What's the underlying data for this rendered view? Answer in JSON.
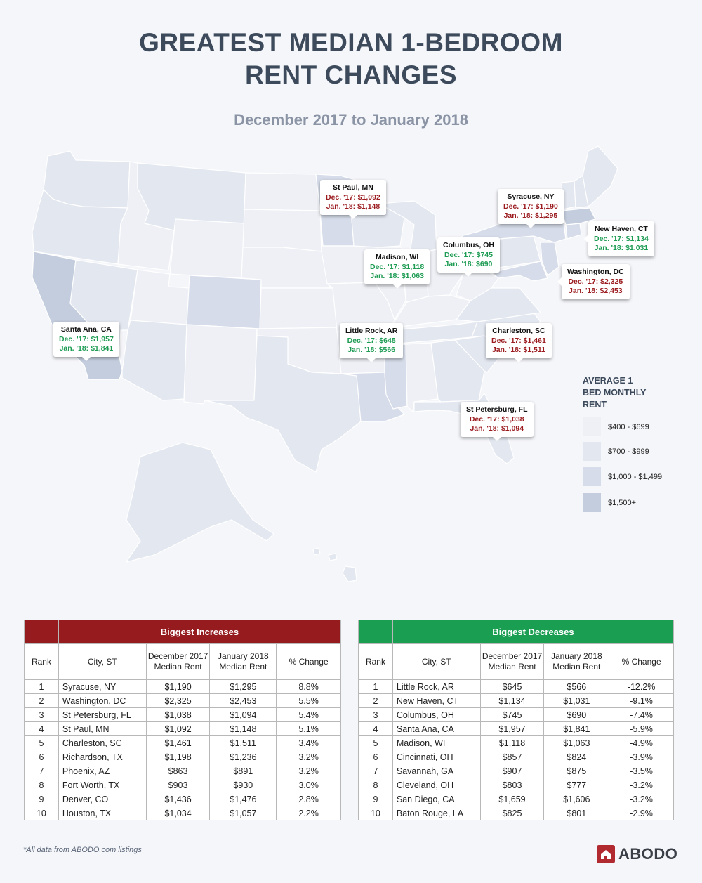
{
  "title_line1": "GREATEST MEDIAN 1-BEDROOM",
  "title_line2": "RENT CHANGES",
  "subtitle": "December 2017 to January 2018",
  "colors": {
    "tier1": "#eef0f6",
    "tier2": "#e3e7f0",
    "tier3": "#d6dce9",
    "tier4": "#c3cddd",
    "increase": "#9b1b1f",
    "decrease": "#1e9c54"
  },
  "callouts": [
    {
      "city": "St Paul, MN",
      "dec": "Dec. '17: $1,092",
      "jan": "Jan. '18: $1,148",
      "type": "inc"
    },
    {
      "city": "Syracuse, NY",
      "dec": "Dec. '17: $1,190",
      "jan": "Jan. '18: $1,295",
      "type": "inc"
    },
    {
      "city": "New Haven, CT",
      "dec": "Dec. '17: $1,134",
      "jan": "Jan. '18: $1,031",
      "type": "dec"
    },
    {
      "city": "Columbus, OH",
      "dec": "Dec. '17: $745",
      "jan": "Jan. '18: $690",
      "type": "dec"
    },
    {
      "city": "Madison, WI",
      "dec": "Dec. '17: $1,118",
      "jan": "Jan. '18: $1,063",
      "type": "dec"
    },
    {
      "city": "Washington, DC",
      "dec": "Dec. '17: $2,325",
      "jan": "Jan. '18: $2,453",
      "type": "inc"
    },
    {
      "city": "Santa Ana, CA",
      "dec": "Dec. '17: $1,957",
      "jan": "Jan. '18: $1,841",
      "type": "dec"
    },
    {
      "city": "Little Rock, AR",
      "dec": "Dec. '17: $645",
      "jan": "Jan. '18: $566",
      "type": "dec"
    },
    {
      "city": "Charleston, SC",
      "dec": "Dec. '17: $1,461",
      "jan": "Jan. '18: $1,511",
      "type": "inc"
    },
    {
      "city": "St Petersburg, FL",
      "dec": "Dec. '17: $1,038",
      "jan": "Jan. '18: $1,094",
      "type": "inc"
    }
  ],
  "legend": {
    "title_lines": [
      "AVERAGE 1",
      "BED MONTHLY",
      "RENT"
    ],
    "items": [
      {
        "label": "$400 - $699",
        "color": "#eef0f6"
      },
      {
        "label": "$700 - $999",
        "color": "#e3e7f0"
      },
      {
        "label": "$1,000 - $1,499",
        "color": "#d6dce9"
      },
      {
        "label": "$1,500+",
        "color": "#c3cddd"
      }
    ]
  },
  "tables": {
    "headers": {
      "rank": "Rank",
      "city": "City, ST",
      "dec": "December 2017 Median Rent",
      "jan": "January 2018 Median Rent",
      "pct": "% Change"
    },
    "increases": {
      "title": "Biggest Increases",
      "color": "#961b1f",
      "rows": [
        [
          "1",
          "Syracuse, NY",
          "$1,190",
          "$1,295",
          "8.8%"
        ],
        [
          "2",
          "Washington, DC",
          "$2,325",
          "$2,453",
          "5.5%"
        ],
        [
          "3",
          "St Petersburg, FL",
          "$1,038",
          "$1,094",
          "5.4%"
        ],
        [
          "4",
          "St Paul, MN",
          "$1,092",
          "$1,148",
          "5.1%"
        ],
        [
          "5",
          "Charleston, SC",
          "$1,461",
          "$1,511",
          "3.4%"
        ],
        [
          "6",
          "Richardson, TX",
          "$1,198",
          "$1,236",
          "3.2%"
        ],
        [
          "7",
          "Phoenix, AZ",
          "$863",
          "$891",
          "3.2%"
        ],
        [
          "8",
          "Fort Worth, TX",
          "$903",
          "$930",
          "3.0%"
        ],
        [
          "9",
          "Denver, CO",
          "$1,436",
          "$1,476",
          "2.8%"
        ],
        [
          "10",
          "Houston, TX",
          "$1,034",
          "$1,057",
          "2.2%"
        ]
      ]
    },
    "decreases": {
      "title": "Biggest Decreases",
      "color": "#1a9e52",
      "rows": [
        [
          "1",
          "Little Rock, AR",
          "$645",
          "$566",
          "-12.2%"
        ],
        [
          "2",
          "New Haven, CT",
          "$1,134",
          "$1,031",
          "-9.1%"
        ],
        [
          "3",
          "Columbus, OH",
          "$745",
          "$690",
          "-7.4%"
        ],
        [
          "4",
          "Santa Ana, CA",
          "$1,957",
          "$1,841",
          "-5.9%"
        ],
        [
          "5",
          "Madison, WI",
          "$1,118",
          "$1,063",
          "-4.9%"
        ],
        [
          "6",
          "Cincinnati, OH",
          "$857",
          "$824",
          "-3.9%"
        ],
        [
          "7",
          "Savannah, GA",
          "$907",
          "$875",
          "-3.5%"
        ],
        [
          "8",
          "Cleveland, OH",
          "$803",
          "$777",
          "-3.2%"
        ],
        [
          "9",
          "San Diego, CA",
          "$1,659",
          "$1,606",
          "-3.2%"
        ],
        [
          "10",
          "Baton Rouge, LA",
          "$825",
          "$801",
          "-2.9%"
        ]
      ]
    }
  },
  "footnote": "*All data from ABODO.com listings",
  "logo_text": "ABODO"
}
